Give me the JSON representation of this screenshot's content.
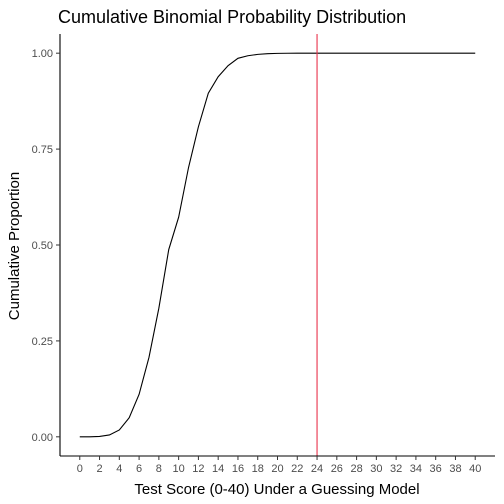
{
  "chart_data": {
    "type": "line",
    "title": "Cumulative Binomial Probability Distribution",
    "xlabel": "Test Score (0-40) Under a Guessing Model",
    "ylabel": "Cumulative Proportion",
    "xlim": [
      -2,
      42
    ],
    "ylim": [
      -0.05,
      1.05
    ],
    "x_ticks": [
      0,
      2,
      4,
      6,
      8,
      10,
      12,
      14,
      16,
      18,
      20,
      22,
      24,
      26,
      28,
      30,
      32,
      34,
      36,
      38,
      40
    ],
    "x_tick_labels": [
      "0",
      "2",
      "4",
      "6",
      "8",
      "10",
      "12",
      "14",
      "16",
      "18",
      "20",
      "22",
      "24",
      "26",
      "28",
      "30",
      "32",
      "34",
      "36",
      "38",
      "40"
    ],
    "y_ticks": [
      0,
      0.25,
      0.5,
      0.75,
      1.0
    ],
    "y_tick_labels": [
      "0.00",
      "0.25",
      "0.50",
      "0.75",
      "1.00"
    ],
    "grid": false,
    "series": [
      {
        "color": "#000000",
        "x": [
          0,
          1,
          2,
          3,
          4,
          5,
          6,
          7,
          8,
          9,
          10,
          11,
          12,
          13,
          14,
          15,
          16,
          17,
          18,
          19,
          20,
          21,
          22,
          23,
          24,
          25,
          26,
          27,
          28,
          29,
          30,
          31,
          32,
          33,
          34,
          35,
          36,
          37,
          38,
          39,
          40
        ],
        "y": [
          0.0,
          0.0001,
          0.0009,
          0.0049,
          0.0179,
          0.0497,
          0.1107,
          0.2072,
          0.3355,
          0.4882,
          0.5725,
          0.7018,
          0.8083,
          0.8955,
          0.9386,
          0.9675,
          0.9867,
          0.9933,
          0.9969,
          0.9987,
          0.9995,
          0.9998,
          0.9999,
          1.0,
          1.0,
          1.0,
          1.0,
          1.0,
          1.0,
          1.0,
          1.0,
          1.0,
          1.0,
          1.0,
          1.0,
          1.0,
          1.0,
          1.0,
          1.0,
          1.0,
          1.0
        ]
      }
    ],
    "vline": {
      "x": 24,
      "color": "#e8324a"
    }
  }
}
